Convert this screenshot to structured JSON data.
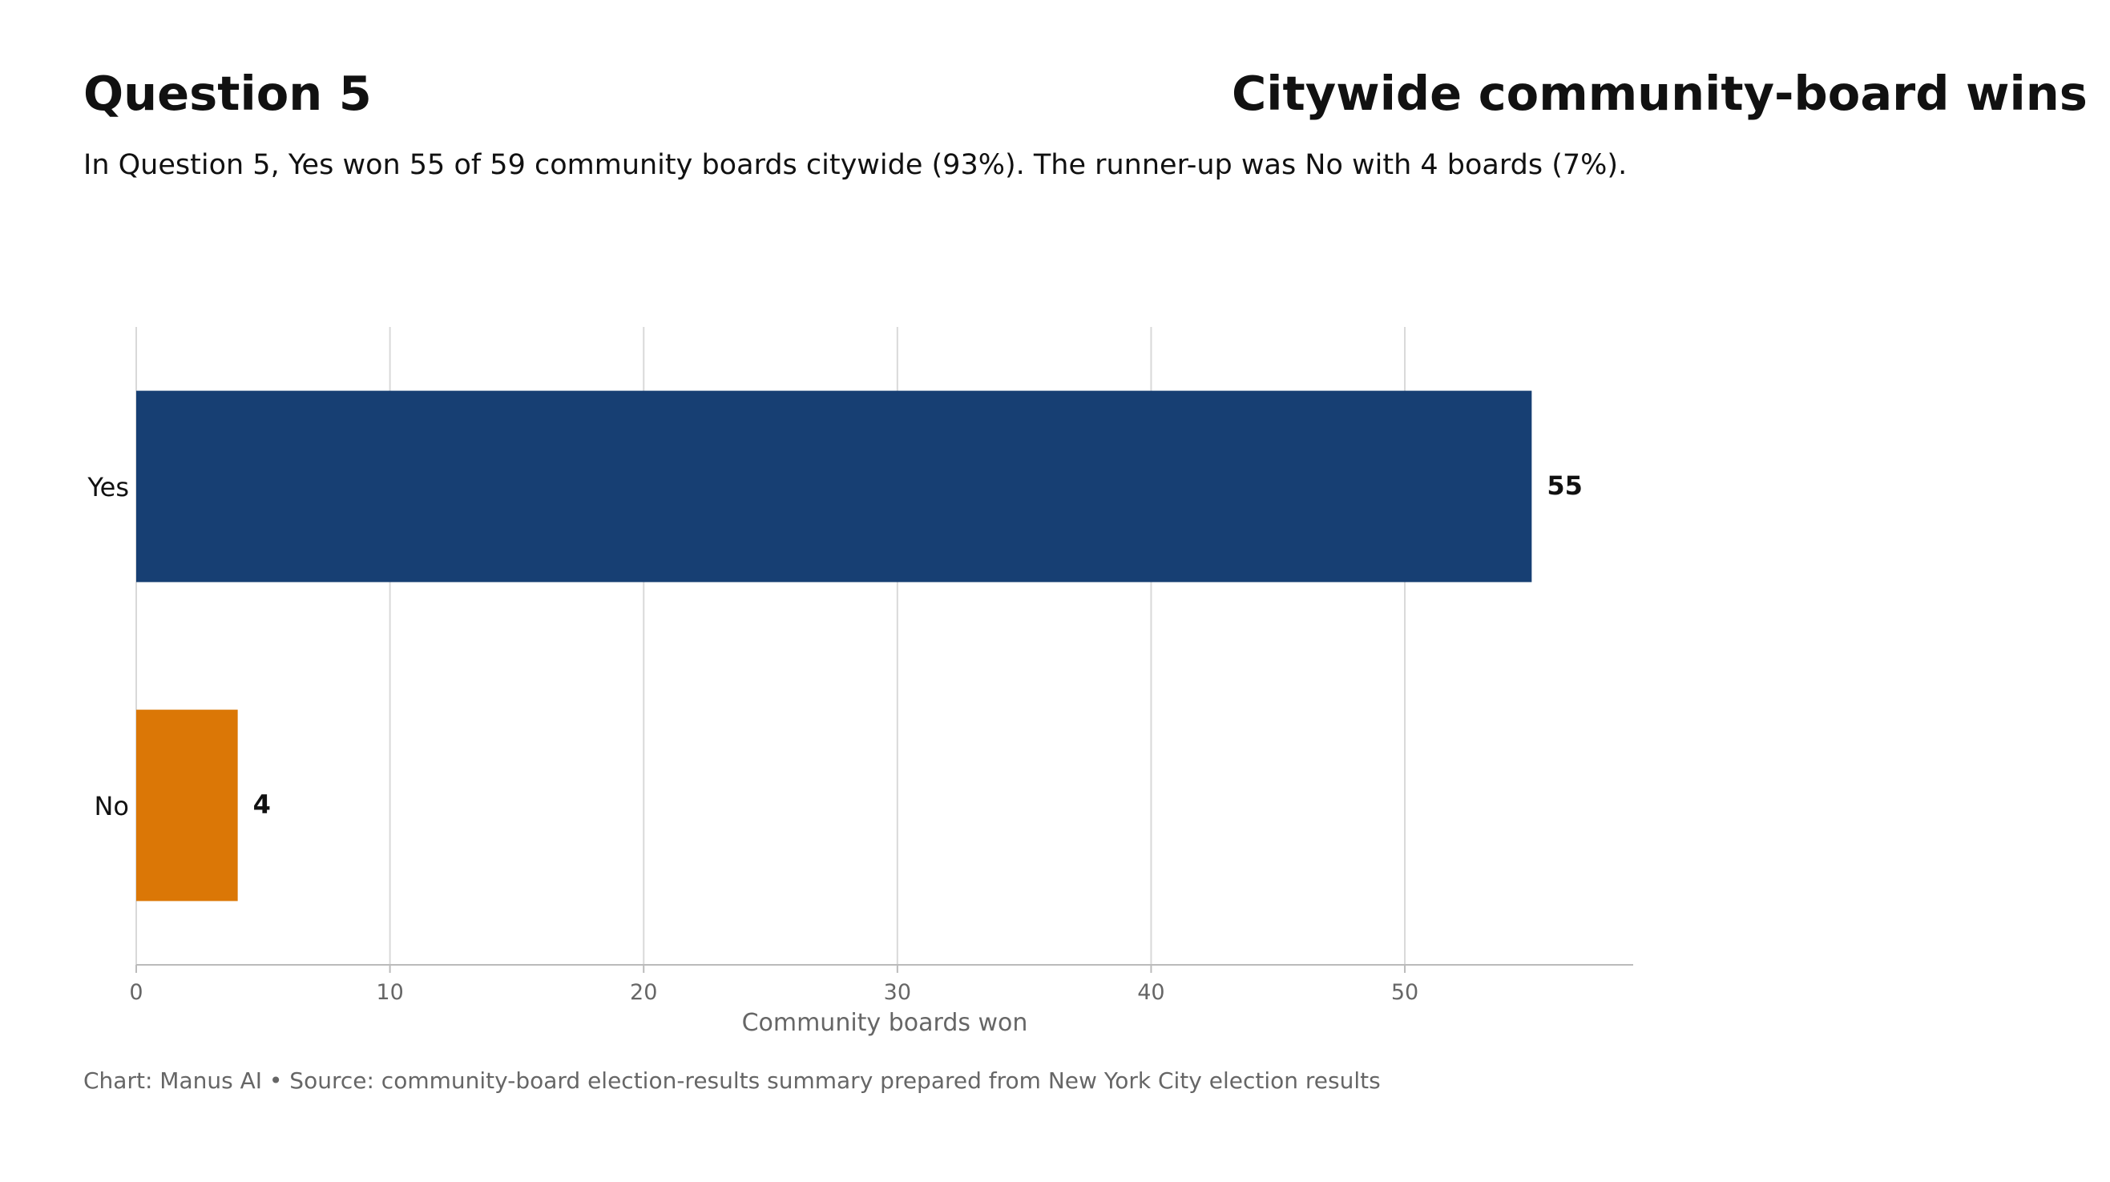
{
  "header": {
    "title_left": "Question 5",
    "title_right": "Citywide community-board wins",
    "subtitle": "In Question 5, Yes won 55 of 59 community boards citywide (93%). The runner-up was No with 4 boards (7%)."
  },
  "footer": {
    "credit": "Chart: Manus AI • Source: community-board election-results summary prepared from New York City election results"
  },
  "chart_data": {
    "type": "bar",
    "orientation": "horizontal",
    "categories": [
      "Yes",
      "No"
    ],
    "values": [
      55,
      4
    ],
    "data_labels": [
      "55",
      "4"
    ],
    "colors": [
      "#173f73",
      "#db7706"
    ],
    "title": "",
    "xlabel": "Community boards won",
    "ylabel": "",
    "xlim": [
      0,
      59
    ],
    "xticks": [
      0,
      10,
      20,
      30,
      40,
      50
    ],
    "grid": "vertical",
    "legend": "none"
  }
}
